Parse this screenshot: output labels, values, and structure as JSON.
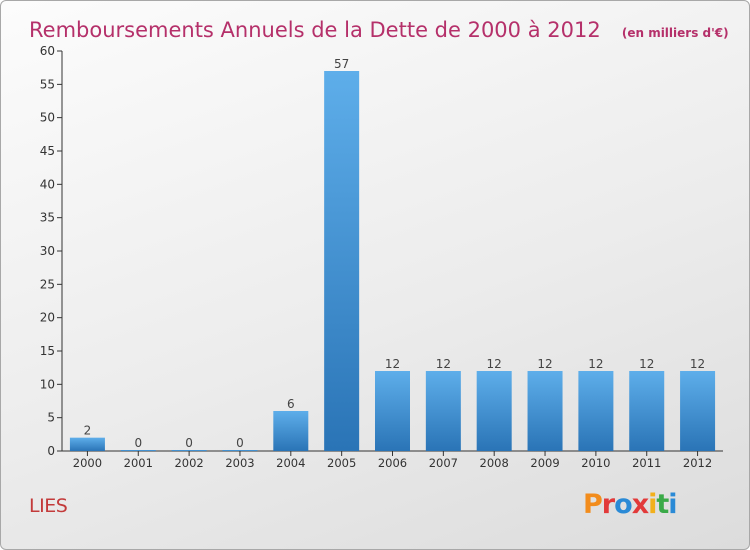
{
  "chart_data": {
    "type": "bar",
    "title": "Remboursements Annuels de la Dette de 2000 à 2012",
    "unit_label": "(en milliers d'€)",
    "categories": [
      "2000",
      "2001",
      "2002",
      "2003",
      "2004",
      "2005",
      "2006",
      "2007",
      "2008",
      "2009",
      "2010",
      "2011",
      "2012"
    ],
    "values": [
      2,
      0,
      0,
      0,
      6,
      57,
      12,
      12,
      12,
      12,
      12,
      12,
      12
    ],
    "ylim": [
      0,
      60
    ],
    "yticks": [
      0,
      5,
      10,
      15,
      20,
      25,
      30,
      35,
      40,
      45,
      50,
      55,
      60
    ],
    "xlabel": "",
    "ylabel": "",
    "grid": false,
    "bar_color": "#3a8fd6",
    "bar_color_light": "#5eaeea",
    "bar_color_dark": "#2a74b6"
  },
  "commune_name": "LIES",
  "brand": {
    "name": "Proxiti",
    "letters": [
      "P",
      "r",
      "o",
      "x",
      "i",
      "t",
      "i"
    ],
    "colors": [
      "#f28c1c",
      "#e23a3a",
      "#2a8ad6",
      "#e23a3a",
      "#f2b01c",
      "#3aaa48",
      "#2a8ad6"
    ]
  },
  "colors": {
    "title": "#b5306a",
    "axis": "#333333",
    "commune": "#c33a3a"
  }
}
